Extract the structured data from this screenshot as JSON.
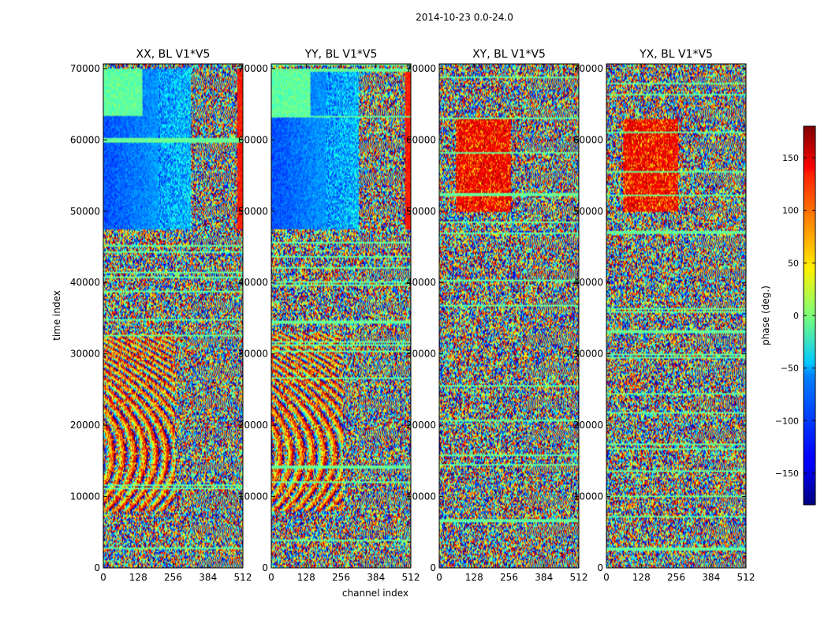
{
  "figure": {
    "title": "2014-10-23 0.0-24.0",
    "xlabel": "channel index",
    "ylabel": "time index"
  },
  "chart_data": {
    "type": "heatmap",
    "title": "2014-10-23 0.0-24.0",
    "xlabel": "channel index",
    "ylabel": "time index",
    "xlim": [
      0,
      512
    ],
    "ylim": [
      0,
      70656
    ],
    "xticks": [
      "0",
      "128",
      "256",
      "384",
      "512"
    ],
    "xtick_values": [
      0,
      128,
      256,
      384,
      512
    ],
    "yticks": [
      "0",
      "10000",
      "20000",
      "30000",
      "40000",
      "50000",
      "60000",
      "70000"
    ],
    "ytick_values": [
      0,
      10000,
      20000,
      30000,
      40000,
      50000,
      60000,
      70000
    ],
    "panels": [
      {
        "title": "XX, BL V1*V5",
        "pol": "XX",
        "baseline": "V1*V5"
      },
      {
        "title": "YY, BL V1*V5",
        "pol": "YY",
        "baseline": "V1*V5"
      },
      {
        "title": "XY, BL V1*V5",
        "pol": "XY",
        "baseline": "V1*V5"
      },
      {
        "title": "YX, BL V1*V5",
        "pol": "YX",
        "baseline": "V1*V5"
      }
    ],
    "colorbar": {
      "label": "phase (deg.)",
      "range": [
        -180,
        180
      ],
      "ticks": [
        "−150",
        "−100",
        "−50",
        "0",
        "50",
        "100",
        "150"
      ],
      "tick_values": [
        -150,
        -100,
        -50,
        0,
        50,
        100,
        150
      ],
      "colormap": "jet"
    }
  }
}
